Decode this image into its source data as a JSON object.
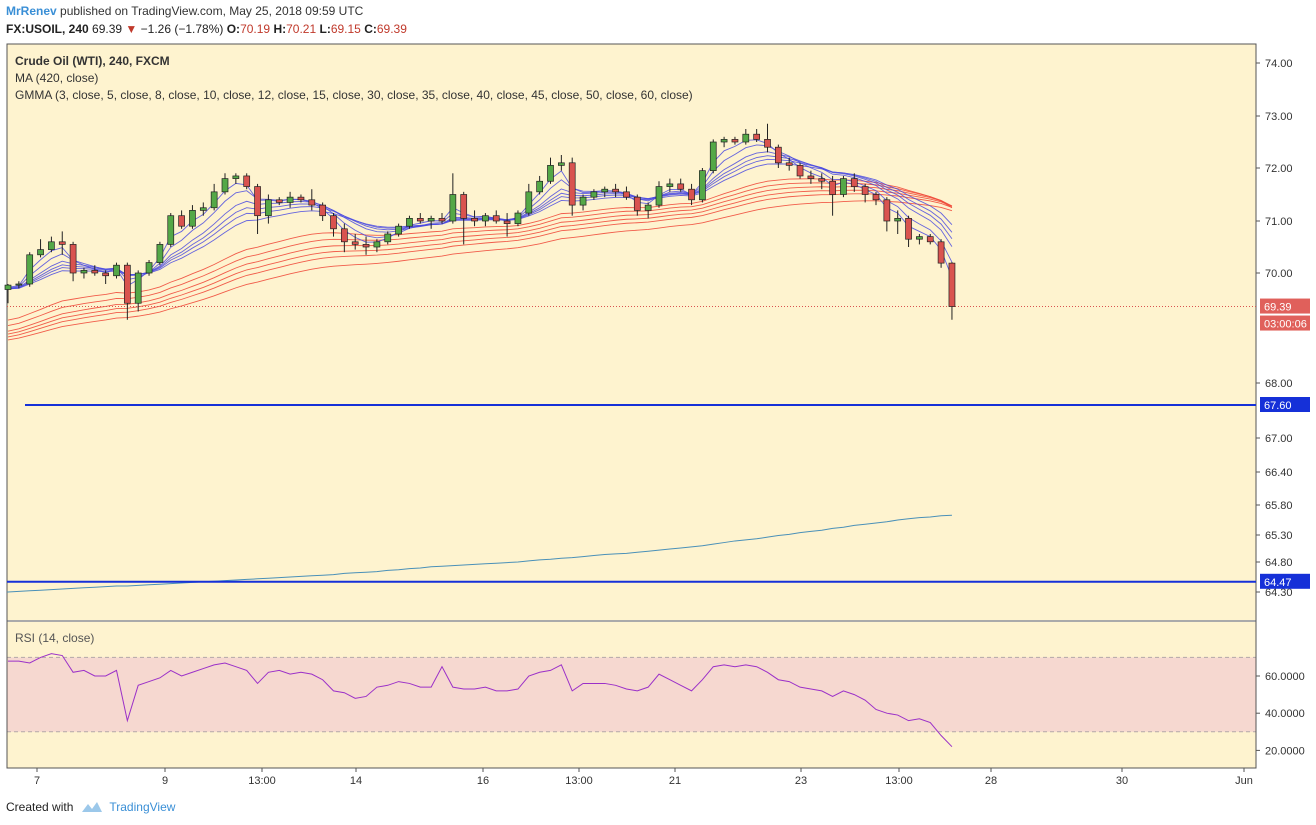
{
  "header": {
    "author": "MrRenev",
    "published": "published on TradingView.com, May 25, 2018 09:59 UTC",
    "symbol": "FX:USOIL, 240",
    "last": "69.39",
    "change": "−1.26 (−1.78%)",
    "o_label": "O:",
    "o": "70.19",
    "h_label": "H:",
    "h": "70.21",
    "l_label": "L:",
    "l": "69.15",
    "c_label": "C:",
    "c": "69.39"
  },
  "legend": {
    "title": "Crude Oil (WTI), 240, FXCM",
    "ma": "MA (420, close)",
    "gmma": "GMMA (3, close, 5, close, 8, close, 10, close, 12, close, 15, close, 30, close, 35, close, 40, close, 45, close, 50, close, 60, close)"
  },
  "rsi_title": "RSI (14, close)",
  "footer": {
    "created": "Created with",
    "brand": "TradingView"
  },
  "colors": {
    "background": "#fef3cf",
    "bull": "#54a847",
    "bear": "#d9534f",
    "gmma_short": "#4a4ae0",
    "gmma_long": "#ef4b3b",
    "ma": "#4a90b8",
    "hline": "#1530d8",
    "rsi": "#9b30c8",
    "rsi_band": "#f6d8d0"
  },
  "chart_data": {
    "type": "candlestick",
    "price_axis": {
      "ticks": [
        "74.00",
        "73.00",
        "72.00",
        "71.00",
        "70.00",
        "68.00",
        "67.00",
        "66.40",
        "65.80",
        "65.30",
        "64.80",
        "64.30"
      ]
    },
    "rsi_axis": {
      "ticks": [
        "60.0000",
        "40.0000",
        "20.0000"
      ],
      "band": [
        30,
        70
      ]
    },
    "x_ticks": [
      "7",
      "9",
      "13:00",
      "14",
      "16",
      "13:00",
      "21",
      "23",
      "13:00",
      "28",
      "30",
      "Jun"
    ],
    "last_price_label": "69.39",
    "countdown_label": "03:00:06",
    "horizontal_lines": [
      {
        "value": "67.60",
        "price": 67.6
      },
      {
        "value": "64.47",
        "price": 64.47
      }
    ],
    "candles": [
      [
        69.7,
        69.8,
        69.45,
        69.78
      ],
      [
        69.78,
        69.85,
        69.72,
        69.8
      ],
      [
        69.8,
        70.4,
        69.75,
        70.35
      ],
      [
        70.35,
        70.65,
        70.3,
        70.45
      ],
      [
        70.45,
        70.7,
        70.4,
        70.6
      ],
      [
        70.6,
        70.8,
        70.35,
        70.55
      ],
      [
        70.55,
        70.6,
        69.85,
        70.0
      ],
      [
        70.0,
        70.1,
        69.9,
        70.05
      ],
      [
        70.05,
        70.15,
        69.95,
        70.0
      ],
      [
        70.0,
        70.05,
        69.8,
        69.95
      ],
      [
        69.95,
        70.2,
        69.9,
        70.15
      ],
      [
        70.15,
        70.2,
        69.15,
        69.45
      ],
      [
        69.45,
        70.05,
        69.3,
        70.0
      ],
      [
        70.0,
        70.25,
        69.95,
        70.2
      ],
      [
        70.2,
        70.6,
        70.15,
        70.55
      ],
      [
        70.55,
        71.15,
        70.5,
        71.1
      ],
      [
        71.1,
        71.2,
        70.85,
        70.9
      ],
      [
        70.9,
        71.3,
        70.85,
        71.2
      ],
      [
        71.2,
        71.35,
        71.1,
        71.25
      ],
      [
        71.25,
        71.7,
        71.2,
        71.55
      ],
      [
        71.55,
        71.9,
        71.5,
        71.8
      ],
      [
        71.8,
        71.9,
        71.7,
        71.85
      ],
      [
        71.85,
        71.9,
        71.6,
        71.65
      ],
      [
        71.65,
        71.7,
        70.75,
        71.1
      ],
      [
        71.1,
        71.5,
        70.95,
        71.4
      ],
      [
        71.4,
        71.45,
        71.3,
        71.35
      ],
      [
        71.35,
        71.55,
        71.25,
        71.45
      ],
      [
        71.45,
        71.5,
        71.35,
        71.4
      ],
      [
        71.4,
        71.6,
        71.2,
        71.3
      ],
      [
        71.3,
        71.35,
        71.0,
        71.1
      ],
      [
        71.1,
        71.15,
        70.7,
        70.85
      ],
      [
        70.85,
        70.95,
        70.4,
        70.6
      ],
      [
        70.6,
        70.75,
        70.45,
        70.55
      ],
      [
        70.55,
        70.7,
        70.35,
        70.5
      ],
      [
        70.5,
        70.65,
        70.4,
        70.6
      ],
      [
        70.6,
        70.8,
        70.55,
        70.75
      ],
      [
        70.75,
        70.95,
        70.7,
        70.9
      ],
      [
        70.9,
        71.1,
        70.85,
        71.05
      ],
      [
        71.05,
        71.15,
        70.95,
        71.0
      ],
      [
        71.0,
        71.1,
        70.85,
        71.05
      ],
      [
        71.05,
        71.15,
        70.95,
        71.0
      ],
      [
        71.0,
        71.9,
        70.95,
        71.5
      ],
      [
        71.5,
        71.55,
        70.55,
        71.05
      ],
      [
        71.05,
        71.2,
        70.9,
        71.0
      ],
      [
        71.0,
        71.15,
        70.9,
        71.1
      ],
      [
        71.1,
        71.2,
        70.95,
        71.0
      ],
      [
        71.0,
        71.15,
        70.7,
        70.95
      ],
      [
        70.95,
        71.2,
        70.9,
        71.15
      ],
      [
        71.15,
        71.7,
        71.1,
        71.55
      ],
      [
        71.55,
        71.85,
        71.5,
        71.75
      ],
      [
        71.75,
        72.2,
        71.7,
        72.05
      ],
      [
        72.05,
        72.25,
        71.95,
        72.1
      ],
      [
        72.1,
        72.2,
        71.1,
        71.3
      ],
      [
        71.3,
        71.5,
        71.2,
        71.45
      ],
      [
        71.45,
        71.6,
        71.4,
        71.55
      ],
      [
        71.55,
        71.65,
        71.45,
        71.6
      ],
      [
        71.6,
        71.7,
        71.45,
        71.55
      ],
      [
        71.55,
        71.65,
        71.4,
        71.45
      ],
      [
        71.45,
        71.5,
        71.1,
        71.2
      ],
      [
        71.2,
        71.35,
        71.05,
        71.3
      ],
      [
        71.3,
        71.75,
        71.25,
        71.65
      ],
      [
        71.65,
        71.8,
        71.55,
        71.7
      ],
      [
        71.7,
        71.8,
        71.55,
        71.6
      ],
      [
        71.6,
        71.7,
        71.3,
        71.4
      ],
      [
        71.4,
        72.0,
        71.35,
        71.95
      ],
      [
        71.95,
        72.55,
        71.9,
        72.5
      ],
      [
        72.5,
        72.6,
        72.4,
        72.55
      ],
      [
        72.55,
        72.6,
        72.45,
        72.5
      ],
      [
        72.5,
        72.75,
        72.45,
        72.65
      ],
      [
        72.65,
        72.75,
        72.5,
        72.55
      ],
      [
        72.55,
        72.85,
        72.3,
        72.4
      ],
      [
        72.4,
        72.45,
        72.0,
        72.1
      ],
      [
        72.1,
        72.2,
        71.95,
        72.05
      ],
      [
        72.05,
        72.1,
        71.8,
        71.85
      ],
      [
        71.85,
        71.95,
        71.7,
        71.8
      ],
      [
        71.8,
        71.9,
        71.6,
        71.75
      ],
      [
        71.75,
        71.85,
        71.1,
        71.5
      ],
      [
        71.5,
        71.85,
        71.45,
        71.8
      ],
      [
        71.8,
        71.9,
        71.55,
        71.65
      ],
      [
        71.65,
        71.7,
        71.35,
        71.5
      ],
      [
        71.5,
        71.55,
        71.3,
        71.4
      ],
      [
        71.4,
        71.45,
        70.8,
        71.0
      ],
      [
        71.0,
        71.2,
        70.75,
        71.05
      ],
      [
        71.05,
        71.1,
        70.5,
        70.65
      ],
      [
        70.65,
        70.75,
        70.55,
        70.7
      ],
      [
        70.7,
        70.75,
        70.55,
        70.6
      ],
      [
        70.6,
        70.65,
        70.1,
        70.19
      ],
      [
        70.19,
        70.21,
        69.15,
        69.39
      ]
    ],
    "ma420": [
      64.3,
      64.31,
      64.32,
      64.33,
      64.34,
      64.35,
      64.36,
      64.37,
      64.38,
      64.39,
      64.4,
      64.4,
      64.41,
      64.42,
      64.43,
      64.44,
      64.45,
      64.46,
      64.47,
      64.48,
      64.49,
      64.5,
      64.51,
      64.52,
      64.53,
      64.54,
      64.55,
      64.56,
      64.57,
      64.58,
      64.59,
      64.61,
      64.62,
      64.63,
      64.64,
      64.66,
      64.67,
      64.69,
      64.7,
      64.72,
      64.73,
      64.74,
      64.75,
      64.76,
      64.77,
      64.78,
      64.79,
      64.8,
      64.82,
      64.84,
      64.85,
      64.87,
      64.88,
      64.9,
      64.92,
      64.94,
      64.95,
      64.96,
      64.98,
      65.0,
      65.02,
      65.04,
      65.06,
      65.08,
      65.1,
      65.13,
      65.16,
      65.19,
      65.21,
      65.23,
      65.26,
      65.29,
      65.31,
      65.34,
      65.36,
      65.38,
      65.41,
      65.43,
      65.46,
      65.48,
      65.5,
      65.52,
      65.55,
      65.57,
      65.59,
      65.6,
      65.62,
      65.63
    ],
    "rsi": [
      68,
      68,
      67,
      70,
      72,
      71,
      62,
      63,
      60,
      60,
      63,
      36,
      55,
      57,
      59,
      63,
      60,
      62,
      64,
      66,
      67,
      65,
      63,
      56,
      62,
      63,
      61,
      62,
      61,
      58,
      52,
      51,
      48,
      49,
      54,
      55,
      57,
      56,
      54,
      54,
      65,
      54,
      53,
      53,
      54,
      52,
      52,
      53,
      60,
      62,
      63,
      66,
      52,
      56,
      56,
      56,
      55,
      53,
      52,
      54,
      61,
      58,
      55,
      52,
      58,
      65,
      66,
      65,
      66,
      65,
      62,
      58,
      57,
      54,
      53,
      52,
      49,
      52,
      50,
      47,
      42,
      40,
      39,
      36,
      37,
      35,
      28,
      22
    ]
  }
}
